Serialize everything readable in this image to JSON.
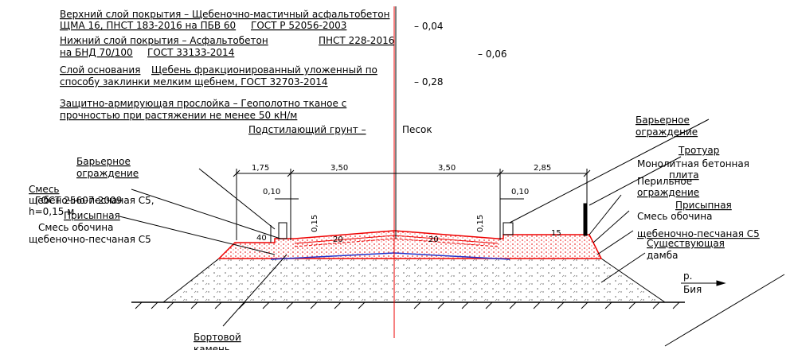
{
  "layers": [
    {
      "lines": [
        "Верхний слой покрытия – Щебеночно-мастичный асфальтобетон",
        "ЩМА 16, ПНСТ 183-2016 на ПБВ 60",
        "ГОСТ Р 52056-2003"
      ],
      "thickness": "– 0,04"
    },
    {
      "lines": [
        "Нижний слой покрытия – Асфальтобетон",
        "ПНСТ 228-2016",
        "на БНД 70/100",
        "ГОСТ 33133-2014"
      ],
      "thickness": "– 0,06"
    },
    {
      "lines": [
        "Слой основания",
        "Щебень фракционированный уложенный по",
        "способу заклинки мелким щебнем, ГОСТ 32703-2014"
      ],
      "thickness": "– 0,28"
    },
    {
      "lines": [
        "Защитно-армирующая прослойка – Геополотно тканое с",
        "прочностью при растяжении не менее 50 кН/м"
      ]
    },
    {
      "lines": [
        "Подстилающий грунт –",
        "Песок"
      ]
    }
  ],
  "dimensions": [
    "1,75",
    "3,50",
    "3,50",
    "2,85",
    "0,10",
    "0,10",
    "0,15",
    "0,15"
  ],
  "slopes": [
    "40",
    "20",
    "20",
    "15"
  ],
  "left_labels": [
    "Барьерное",
    "ограждение",
    "Смесь",
    "щебеночно-песчаная С5,",
    "ГОСТ 25607-2009",
    "h=0,15 м",
    "Присыпная",
    "Смесь обочина",
    "щебеночно-песчаная С5"
  ],
  "right_labels": [
    "Барьерное",
    "ограждение",
    "Тротуар",
    "Монолитная бетонная",
    "плита",
    "Перильное",
    "ограждение",
    "Присыпная",
    "Смесь обочина",
    "щебеночно-песчаная С5",
    "Существующая",
    "дамба"
  ],
  "river": [
    "р.",
    "Бия"
  ],
  "bottom_labels": [
    "Бортовой",
    "камень"
  ]
}
